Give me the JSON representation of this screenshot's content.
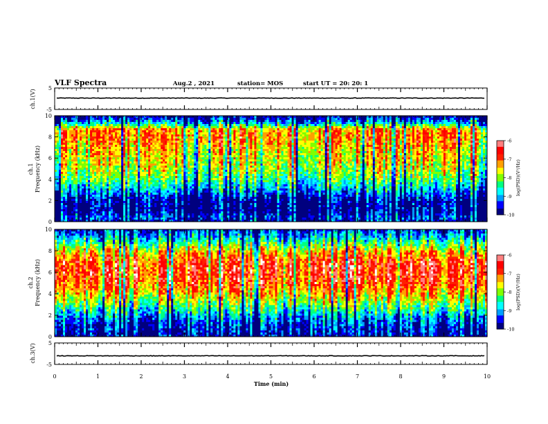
{
  "header": {
    "title": "VLF Spectra",
    "date": "Aug.2  , 2021",
    "station": "station= MOS",
    "start": "start  UT =   20: 20: 1"
  },
  "colors": {
    "colormap": [
      "#00007f",
      "#0000ff",
      "#00a0ff",
      "#00ffff",
      "#00ff80",
      "#80ff00",
      "#ffff00",
      "#ffa000",
      "#ff2000",
      "#ff0000",
      "#ff8080",
      "#ffffff"
    ],
    "waveform": "#000000"
  },
  "chart_data": [
    {
      "type": "line",
      "panel": "ch1-waveform",
      "ylabel": "ch.1(V)",
      "ylim": [
        -5,
        5
      ],
      "yticks": [
        "5",
        "-5"
      ],
      "xlim": [
        0,
        10
      ],
      "series": [
        {
          "values_description": "near-flat trace",
          "y_level": 0.3
        }
      ]
    },
    {
      "type": "heatmap",
      "panel": "ch1-spectrogram",
      "ylabel_line1": "ch.1",
      "ylabel_line2": "Frequency  (kHz)",
      "xlim": [
        0,
        10
      ],
      "ylim": [
        0,
        10
      ],
      "yticks": [
        "0",
        "2",
        "4",
        "6",
        "8",
        "10"
      ],
      "colorbar": {
        "label": "log(PSD)(V²/Hz)",
        "ticks": [
          "-6",
          "-7",
          "-8",
          "-9",
          "-10"
        ],
        "range": [
          -10,
          -6
        ]
      },
      "band_profile": [
        {
          "f": 0.0,
          "v": -9.6
        },
        {
          "f": 0.5,
          "v": -9.3
        },
        {
          "f": 1.0,
          "v": -9.8
        },
        {
          "f": 2.0,
          "v": -9.7
        },
        {
          "f": 3.0,
          "v": -8.9
        },
        {
          "f": 4.0,
          "v": -8.2
        },
        {
          "f": 5.0,
          "v": -7.8
        },
        {
          "f": 6.0,
          "v": -7.6
        },
        {
          "f": 7.0,
          "v": -7.4
        },
        {
          "f": 8.0,
          "v": -7.1
        },
        {
          "f": 8.7,
          "v": -7.2
        },
        {
          "f": 9.3,
          "v": -8.8
        },
        {
          "f": 10.0,
          "v": -9.9
        }
      ]
    },
    {
      "type": "heatmap",
      "panel": "ch2-spectrogram",
      "ylabel_line1": "ch.2",
      "ylabel_line2": "Frequency  (kHz)",
      "xlim": [
        0,
        10
      ],
      "ylim": [
        0,
        10
      ],
      "yticks": [
        "0",
        "2",
        "4",
        "6",
        "8",
        "10"
      ],
      "colorbar": {
        "label": "log(PSD)(V²/Hz)",
        "ticks": [
          "-6",
          "-7",
          "-8",
          "-9",
          "-10"
        ],
        "range": [
          -10,
          -6
        ]
      },
      "band_profile": [
        {
          "f": 0.0,
          "v": -9.7
        },
        {
          "f": 1.0,
          "v": -9.5
        },
        {
          "f": 2.0,
          "v": -8.9
        },
        {
          "f": 3.0,
          "v": -8.1
        },
        {
          "f": 4.0,
          "v": -7.4
        },
        {
          "f": 5.0,
          "v": -6.9
        },
        {
          "f": 6.0,
          "v": -6.7
        },
        {
          "f": 7.0,
          "v": -6.8
        },
        {
          "f": 8.0,
          "v": -7.5
        },
        {
          "f": 9.0,
          "v": -8.6
        },
        {
          "f": 10.0,
          "v": -9.5
        }
      ]
    },
    {
      "type": "line",
      "panel": "ch3-waveform",
      "ylabel": "ch.3(V)",
      "ylim": [
        -5,
        5
      ],
      "yticks": [
        "5",
        "-5"
      ],
      "xlim": [
        0,
        10
      ],
      "series": [
        {
          "values_description": "near-flat trace",
          "y_level": -1.0
        }
      ]
    }
  ],
  "xaxis": {
    "label": "Time  (min)",
    "ticks": [
      "0",
      "1",
      "2",
      "3",
      "4",
      "5",
      "6",
      "7",
      "8",
      "9",
      "10"
    ],
    "range": [
      0,
      10
    ]
  }
}
